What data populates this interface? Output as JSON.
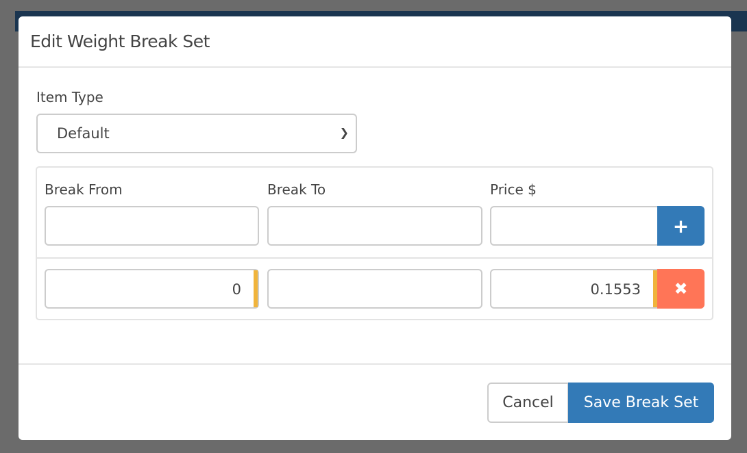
{
  "dialog": {
    "title": "Edit Weight Break Set"
  },
  "item_type": {
    "label": "Item Type",
    "value": "Default"
  },
  "columns": {
    "from": "Break From",
    "to": "Break To",
    "price": "Price $"
  },
  "new_row": {
    "from": "",
    "to": "",
    "price": ""
  },
  "rows": [
    {
      "from": "0",
      "to": "",
      "price": "0.1553"
    }
  ],
  "buttons": {
    "add": "+",
    "remove": "✖",
    "cancel": "Cancel",
    "save": "Save Break Set"
  },
  "colors": {
    "primary": "#337ab7",
    "danger": "#ff7557",
    "warning": "#f0b43c"
  }
}
